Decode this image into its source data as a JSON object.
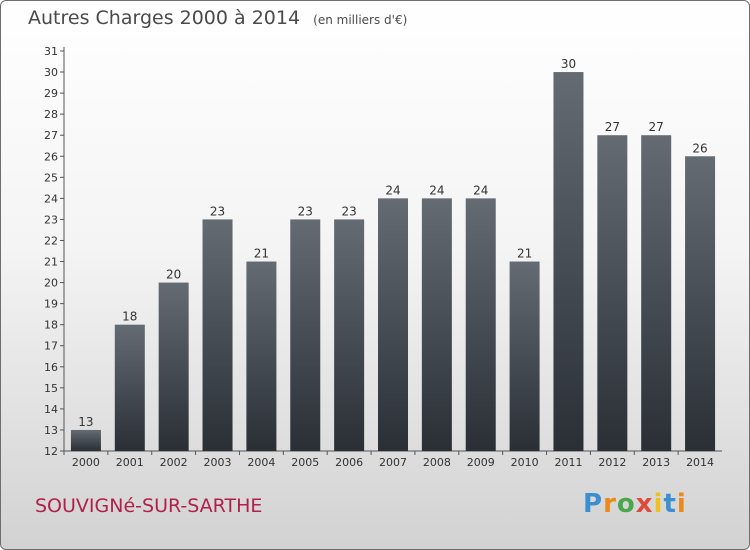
{
  "chart_data": {
    "type": "bar",
    "title": "Autres Charges 2000 à 2014",
    "subtitle": "(en milliers d'€)",
    "categories": [
      "2000",
      "2001",
      "2002",
      "2003",
      "2004",
      "2005",
      "2006",
      "2007",
      "2008",
      "2009",
      "2010",
      "2011",
      "2012",
      "2013",
      "2014"
    ],
    "values": [
      13,
      18,
      20,
      23,
      21,
      23,
      23,
      24,
      24,
      24,
      21,
      30,
      27,
      27,
      26
    ],
    "data_labels": [
      "13",
      "18",
      "20",
      "23",
      "21",
      "23",
      "23",
      "24",
      "24",
      "24",
      "21",
      "30",
      "27",
      "27",
      "26"
    ],
    "y_ticks": [
      "12",
      "13",
      "14",
      "15",
      "16",
      "17",
      "18",
      "19",
      "20",
      "21",
      "22",
      "23",
      "24",
      "25",
      "26",
      "27",
      "28",
      "29",
      "30",
      "31"
    ],
    "xlabel": "",
    "ylabel": "",
    "ylim": [
      12,
      31
    ],
    "grid": false,
    "legend": "none",
    "bar_color_top": "#646b73",
    "bar_color_bottom": "#2a2f36"
  },
  "footer": {
    "commune": "SOUVIGNé-SUR-SARTHE",
    "brand": [
      "P",
      "r",
      "o",
      "x",
      "i",
      "t",
      "i"
    ]
  },
  "colors": {
    "commune_text": "#b0204a",
    "brand_letters": [
      "#3a8fd0",
      "#e98a1a",
      "#4aa84a",
      "#e04a3a",
      "#f0c020",
      "#3a8fd0",
      "#e98a1a"
    ]
  }
}
